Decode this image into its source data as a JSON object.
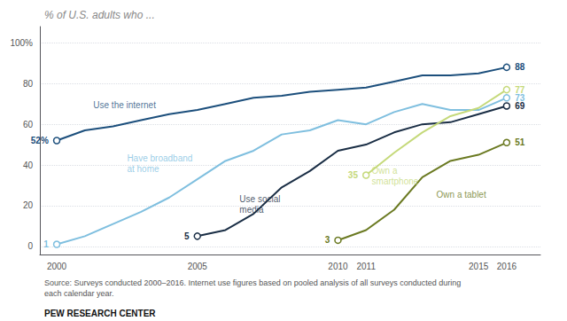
{
  "chart_data": {
    "type": "line",
    "title": "% of U.S. adults who ...",
    "source": "Source: Surveys conducted 2000–2016. Internet use figures based on pooled analysis of all surveys conducted during\neach calendar year.",
    "footer": "PEW RESEARCH CENTER",
    "series": [
      {
        "name": "Use the internet",
        "color": "#1c4f7c",
        "x": [
          2000,
          2001,
          2002,
          2003,
          2004,
          2005,
          2006,
          2007,
          2008,
          2009,
          2010,
          2011,
          2012,
          2013,
          2014,
          2015,
          2016
        ],
        "values": [
          52,
          57,
          59,
          62,
          65,
          67,
          70,
          73,
          74,
          76,
          77,
          78,
          81,
          84,
          84,
          85,
          88
        ],
        "value_labels": [
          "52%",
          null,
          null,
          null,
          null,
          null,
          null,
          null,
          null,
          null,
          null,
          null,
          null,
          null,
          null,
          null,
          "88"
        ]
      },
      {
        "name": "Have broadband at home",
        "color": "#7fbfdf",
        "x": [
          2000,
          2001,
          2002,
          2003,
          2004,
          2005,
          2006,
          2007,
          2008,
          2009,
          2010,
          2011,
          2012,
          2013,
          2014,
          2015,
          2016
        ],
        "values": [
          1,
          5,
          11,
          17,
          24,
          33,
          42,
          47,
          55,
          57,
          62,
          60,
          66,
          70,
          67,
          67,
          73
        ],
        "value_labels": [
          "1",
          null,
          null,
          null,
          null,
          null,
          null,
          null,
          null,
          null,
          null,
          null,
          null,
          null,
          null,
          null,
          "73"
        ]
      },
      {
        "name": "Use social media",
        "color": "#1a2e45",
        "x": [
          2005,
          2006,
          2007,
          2008,
          2009,
          2010,
          2011,
          2012,
          2013,
          2014,
          2015,
          2016
        ],
        "values": [
          5,
          8,
          16,
          29,
          37,
          47,
          50,
          56,
          60,
          61,
          65,
          69
        ],
        "value_labels": [
          "5",
          null,
          null,
          null,
          null,
          null,
          null,
          null,
          null,
          null,
          null,
          "69"
        ]
      },
      {
        "name": "Own a smartphone",
        "color": "#c5d97a",
        "x": [
          2011,
          2012,
          2013,
          2014,
          2015,
          2016
        ],
        "values": [
          35,
          46,
          56,
          64,
          68,
          77
        ],
        "value_labels": [
          "35",
          null,
          null,
          null,
          null,
          "77"
        ]
      },
      {
        "name": "Own a tablet",
        "color": "#6b7a22",
        "x": [
          2010,
          2011,
          2012,
          2013,
          2014,
          2015,
          2016
        ],
        "values": [
          3,
          8,
          18,
          34,
          42,
          45,
          51
        ],
        "value_labels": [
          "3",
          null,
          null,
          null,
          null,
          null,
          "51"
        ]
      }
    ],
    "annotations": [
      {
        "text": "Use the internet",
        "x": 2001.3,
        "y": 72,
        "color": "#1c4f7c"
      },
      {
        "text": "Have broadband\nat home",
        "x": 2002.5,
        "y": 46,
        "color": "#7fbfdf"
      },
      {
        "text": "Use social\nmedia",
        "x": 2006.5,
        "y": 26,
        "color": "#1a2e45"
      },
      {
        "text": "Own a\nsmartphone",
        "x": 2011.2,
        "y": 40,
        "color": "#c5d97a"
      },
      {
        "text": "Own a tablet",
        "x": 2013.5,
        "y": 28,
        "color": "#6b7a22"
      }
    ],
    "xlim": [
      1999.4,
      2017.2
    ],
    "xticks": [
      2000,
      2005,
      2010,
      2011,
      2015,
      2016
    ],
    "ylim": [
      -4,
      108
    ],
    "yticks": [
      0,
      20,
      40,
      60,
      80,
      {
        "value": 100,
        "label": "100%"
      }
    ],
    "grid": true,
    "marker": "circle"
  }
}
